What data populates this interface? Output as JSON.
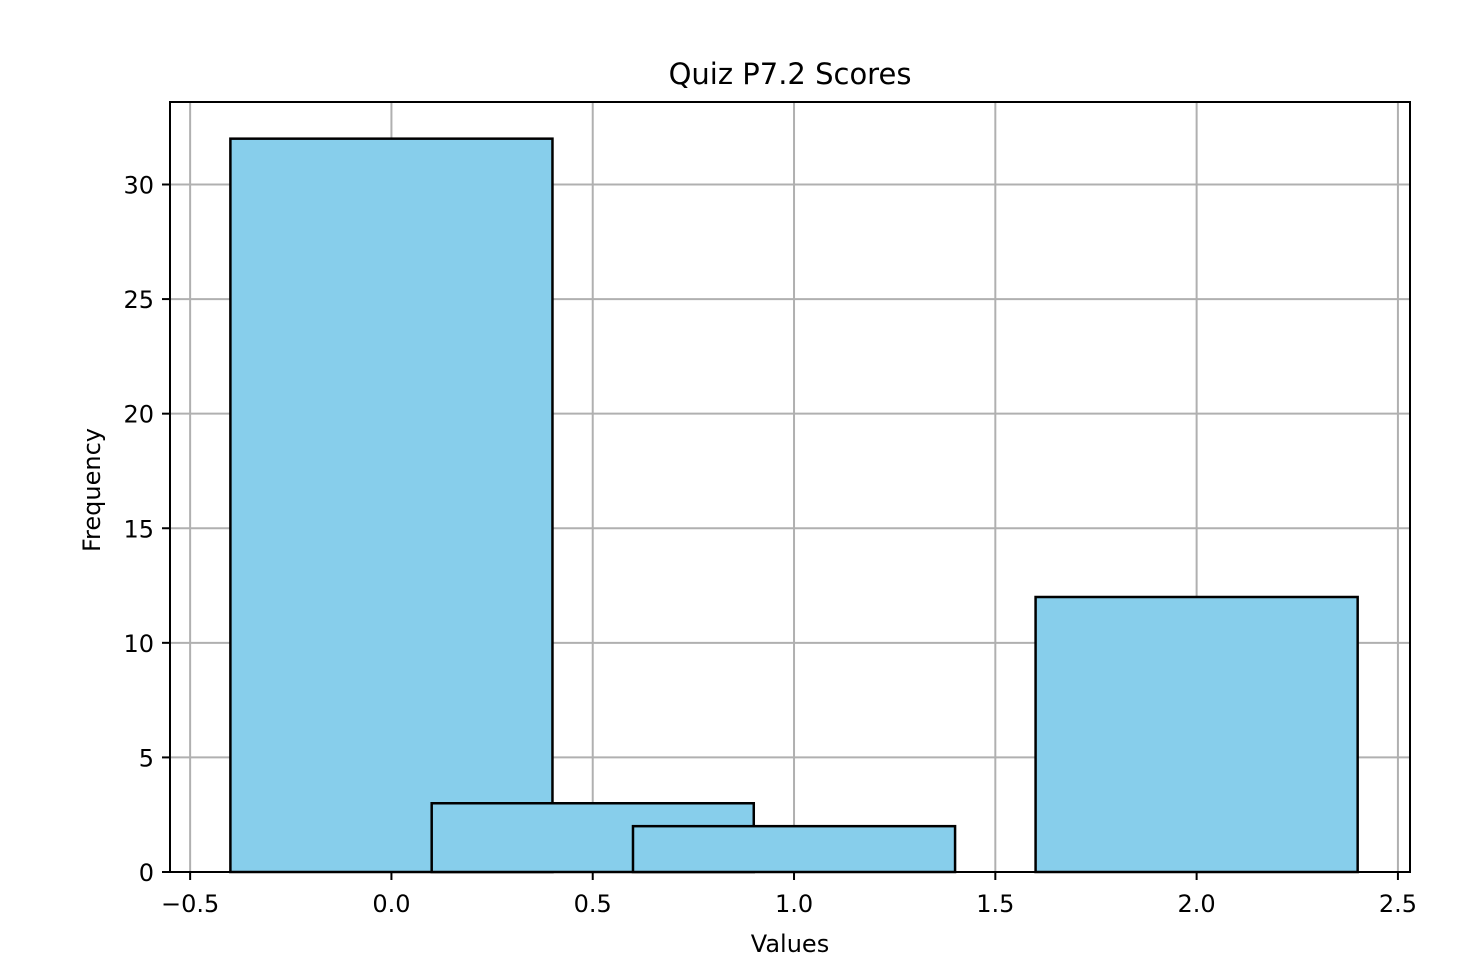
{
  "chart_data": {
    "type": "bar",
    "title": "Quiz P7.2 Scores",
    "xlabel": "Values",
    "ylabel": "Frequency",
    "xlim": [
      -0.55,
      2.53
    ],
    "ylim": [
      0,
      33.6
    ],
    "x_ticks": [
      -0.5,
      0.0,
      0.5,
      1.0,
      1.5,
      2.0,
      2.5
    ],
    "x_tick_labels": [
      "−0.5",
      "0.0",
      "0.5",
      "1.0",
      "1.5",
      "2.0",
      "2.5"
    ],
    "y_ticks": [
      0,
      5,
      10,
      15,
      20,
      25,
      30
    ],
    "y_tick_labels": [
      "0",
      "5",
      "10",
      "15",
      "20",
      "25",
      "30"
    ],
    "grid": true,
    "bar_color": "#87CEEB",
    "edge_color": "#000000",
    "bars": [
      {
        "x": 0.0,
        "width": 0.8,
        "value": 32
      },
      {
        "x": 0.5,
        "width": 0.8,
        "value": 3
      },
      {
        "x": 1.0,
        "width": 0.8,
        "value": 2
      },
      {
        "x": 2.0,
        "width": 0.8,
        "value": 12
      }
    ]
  }
}
